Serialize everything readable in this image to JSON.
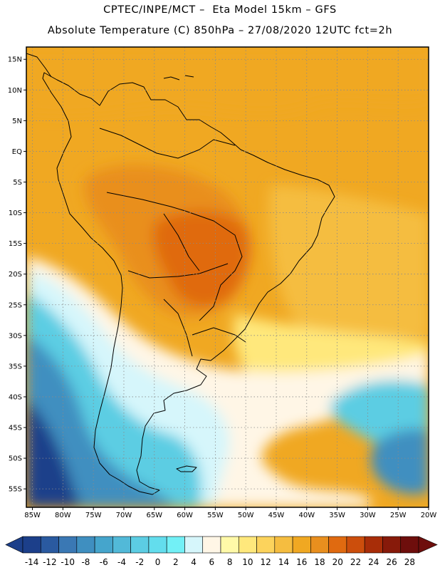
{
  "title_line1": "CPTEC/INPE/MCT –  Eta Model 15km – GFS",
  "title_line2": "Absolute Temperature (C) 850hPa – 27/08/2020 12UTC fct=2h",
  "lat_ticks": [
    {
      "lat": 15,
      "label": "15N"
    },
    {
      "lat": 10,
      "label": "10N"
    },
    {
      "lat": 5,
      "label": "5N"
    },
    {
      "lat": 0,
      "label": "EQ"
    },
    {
      "lat": -5,
      "label": "5S"
    },
    {
      "lat": -10,
      "label": "10S"
    },
    {
      "lat": -15,
      "label": "15S"
    },
    {
      "lat": -20,
      "label": "20S"
    },
    {
      "lat": -25,
      "label": "25S"
    },
    {
      "lat": -30,
      "label": "30S"
    },
    {
      "lat": -35,
      "label": "35S"
    },
    {
      "lat": -40,
      "label": "40S"
    },
    {
      "lat": -45,
      "label": "45S"
    },
    {
      "lat": -50,
      "label": "50S"
    },
    {
      "lat": -55,
      "label": "55S"
    }
  ],
  "lon_ticks": [
    {
      "lon": -85,
      "label": "85W"
    },
    {
      "lon": -80,
      "label": "80W"
    },
    {
      "lon": -75,
      "label": "75W"
    },
    {
      "lon": -70,
      "label": "70W"
    },
    {
      "lon": -65,
      "label": "65W"
    },
    {
      "lon": -60,
      "label": "60W"
    },
    {
      "lon": -55,
      "label": "55W"
    },
    {
      "lon": -50,
      "label": "50W"
    },
    {
      "lon": -45,
      "label": "45W"
    },
    {
      "lon": -40,
      "label": "40W"
    },
    {
      "lon": -35,
      "label": "35W"
    },
    {
      "lon": -30,
      "label": "30W"
    },
    {
      "lon": -25,
      "label": "25W"
    },
    {
      "lon": -20,
      "label": "20W"
    }
  ],
  "map_extent": {
    "lon_min": -86,
    "lon_max": -20,
    "lat_min": -58,
    "lat_max": 17
  },
  "colorbar": {
    "labels": [
      "-14",
      "-12",
      "-10",
      "-8",
      "-6",
      "-4",
      "-2",
      "0",
      "2",
      "4",
      "6",
      "8",
      "10",
      "12",
      "14",
      "16",
      "18",
      "20",
      "22",
      "24",
      "26",
      "28"
    ],
    "colors": [
      "#1c3f8a",
      "#2a5aa0",
      "#3a78b4",
      "#3f8fc0",
      "#45a5cc",
      "#52b9d8",
      "#5ccde3",
      "#63dded",
      "#72f0f6",
      "#d6f6fb",
      "#fff6e6",
      "#fff9a8",
      "#ffe87c",
      "#fcd35c",
      "#f5bd40",
      "#f0a822",
      "#e98f1e",
      "#e06a10",
      "#cc4e0c",
      "#a82d08",
      "#871a0a",
      "#6e0e0c"
    ]
  },
  "map_colors": {
    "frame": "#000000",
    "grid": "#8a8a8a",
    "coast": "#000000",
    "t_cold_deep": "#1c3f8a",
    "t_cold": "#3f8fc0",
    "t_cyan": "#5ccde3",
    "t_light": "#d6f6fb",
    "t_pale": "#fff6e6",
    "t_yellow": "#ffe87c",
    "t_gold": "#f5bd40",
    "t_orange": "#f0a822",
    "t_dark_orange": "#e98f1e",
    "t_hot": "#e06a10"
  }
}
